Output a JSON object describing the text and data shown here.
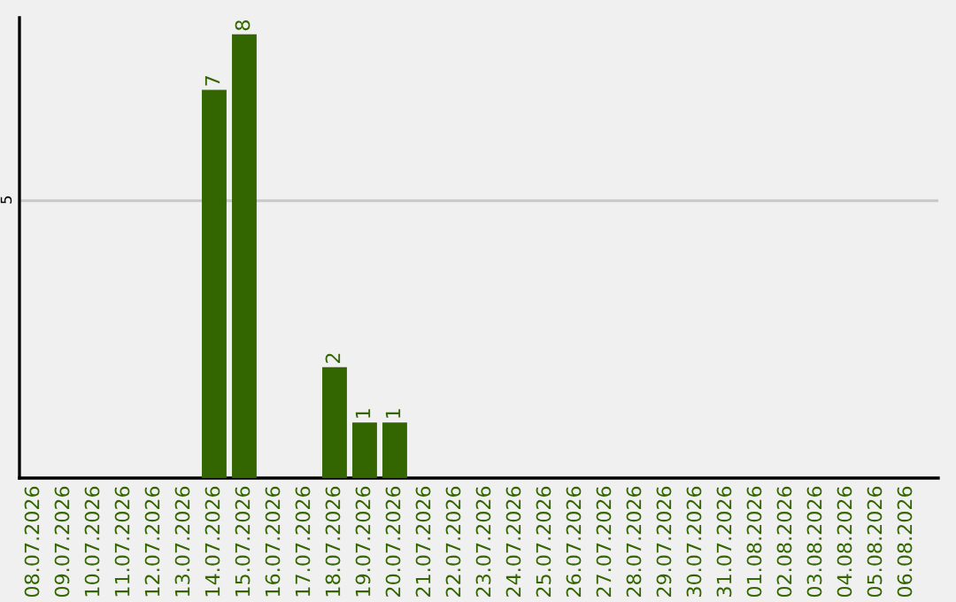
{
  "chart_data": {
    "type": "bar",
    "categories": [
      "08.07.2026",
      "09.07.2026",
      "10.07.2026",
      "11.07.2026",
      "12.07.2026",
      "13.07.2026",
      "14.07.2026",
      "15.07.2026",
      "16.07.2026",
      "17.07.2026",
      "18.07.2026",
      "19.07.2026",
      "20.07.2026",
      "21.07.2026",
      "22.07.2026",
      "23.07.2026",
      "24.07.2026",
      "25.07.2026",
      "26.07.2026",
      "27.07.2026",
      "28.07.2026",
      "29.07.2026",
      "30.07.2026",
      "31.07.2026",
      "01.08.2026",
      "02.08.2026",
      "03.08.2026",
      "04.08.2026",
      "05.08.2026",
      "06.08.2026"
    ],
    "values": [
      0,
      0,
      0,
      0,
      0,
      0,
      7,
      8,
      0,
      0,
      2,
      1,
      1,
      0,
      0,
      0,
      0,
      0,
      0,
      0,
      0,
      0,
      0,
      0,
      0,
      0,
      0,
      0,
      0,
      0
    ],
    "value_labels": [
      null,
      null,
      null,
      null,
      null,
      null,
      "7",
      "8",
      null,
      null,
      "2",
      "1",
      "1",
      null,
      null,
      null,
      null,
      null,
      null,
      null,
      null,
      null,
      null,
      null,
      null,
      null,
      null,
      null,
      null,
      null
    ],
    "color": "#336600",
    "ylim": [
      0,
      8.3
    ],
    "yticks": [
      5
    ],
    "grid": "y"
  }
}
